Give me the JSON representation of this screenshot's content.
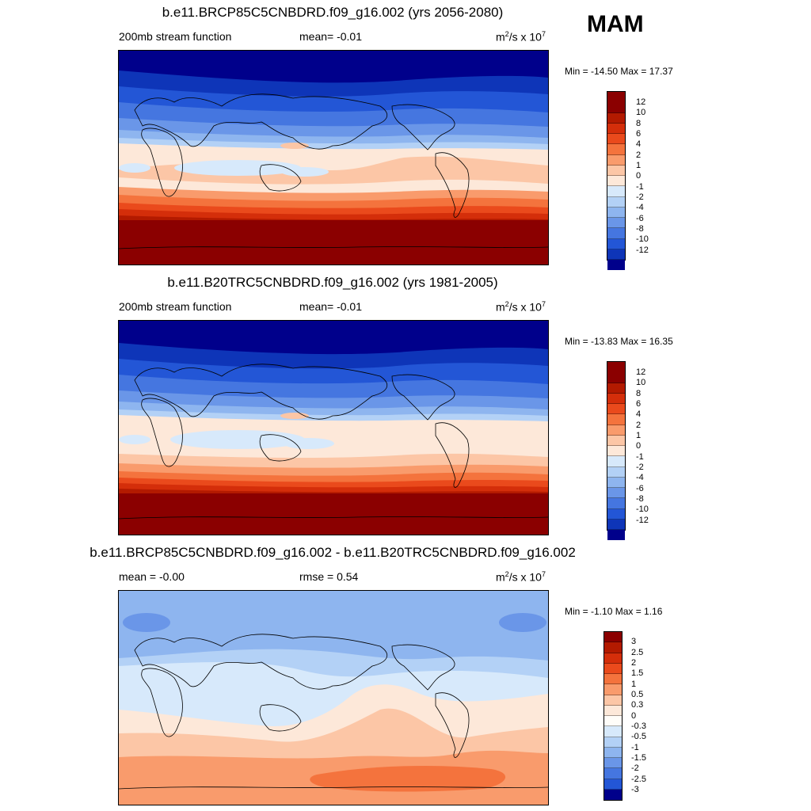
{
  "season": "MAM",
  "panels": [
    {
      "title": "b.e11.BRCP85C5CNBDRD.f09_g16.002 (yrs 2056-2080)",
      "left_label": "200mb stream function",
      "center_label": "mean=  -0.01",
      "units_prefix": "m",
      "units_sup1": "2",
      "units_mid": "/s x 10",
      "units_sup2": "7",
      "minmax": "Min = -14.50 Max =  17.37",
      "colorbar_labels": [
        "12",
        "10",
        "8",
        "6",
        "4",
        "2",
        "1",
        "0",
        "-1",
        "-2",
        "-4",
        "-6",
        "-8",
        "-10",
        "-12"
      ]
    },
    {
      "title": "b.e11.B20TRC5CNBDRD.f09_g16.002 (yrs 1981-2005)",
      "left_label": "200mb stream function",
      "center_label": "mean=  -0.01",
      "units_prefix": "m",
      "units_sup1": "2",
      "units_mid": "/s x 10",
      "units_sup2": "7",
      "minmax": "Min = -13.83 Max =  16.35",
      "colorbar_labels": [
        "12",
        "10",
        "8",
        "6",
        "4",
        "2",
        "1",
        "0",
        "-1",
        "-2",
        "-4",
        "-6",
        "-8",
        "-10",
        "-12"
      ]
    },
    {
      "title": "b.e11.BRCP85C5CNBDRD.f09_g16.002 - b.e11.B20TRC5CNBDRD.f09_g16.002",
      "left_label": "mean =  -0.00",
      "center_label": "rmse =   0.54",
      "units_prefix": "m",
      "units_sup1": "2",
      "units_mid": "/s x 10",
      "units_sup2": "7",
      "minmax": "Min =  -1.10 Max =   1.16",
      "colorbar_labels": [
        "3",
        "2.5",
        "2",
        "1.5",
        "1",
        "0.5",
        "0.3",
        "0",
        "-0.3",
        "-0.5",
        "-1",
        "-1.5",
        "-2",
        "-2.5",
        "-3"
      ]
    }
  ],
  "colors": {
    "scale16": [
      "#8b0000",
      "#b31a00",
      "#d42e0a",
      "#ea4a1c",
      "#f4733d",
      "#f99b6c",
      "#fcc6a6",
      "#fde8d9",
      "#d7e9fb",
      "#b3d1f6",
      "#8eb5ef",
      "#6a96e8",
      "#4576e0",
      "#2356d6",
      "#0e35b8",
      "#00008b"
    ],
    "scale16_diff": [
      "#8b0000",
      "#b31a00",
      "#d42e0a",
      "#ea4a1c",
      "#f4733d",
      "#f99b6c",
      "#fcc6a6",
      "#fde8d9",
      "#fffdf9",
      "#d7e9fb",
      "#b3d1f6",
      "#8eb5ef",
      "#6a96e8",
      "#4576e0",
      "#2356d6",
      "#00008b"
    ]
  }
}
